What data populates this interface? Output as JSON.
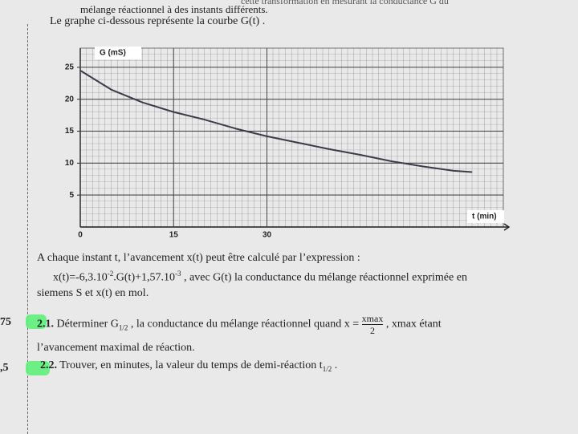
{
  "header": {
    "cut_line": "cette transformation en mesurant la conductance G du",
    "line1": "mélange réactionnel à des instants différents.",
    "line2": "Le graphe ci-dessous représente la courbe G(t) ."
  },
  "chart_data": {
    "type": "line",
    "x_label": "t (min)",
    "y_label": "G (mS)",
    "x": [
      0,
      5,
      10,
      15,
      20,
      25,
      30,
      35,
      40,
      45,
      50,
      55,
      60,
      63
    ],
    "series": [
      {
        "color": "#3a3d48",
        "values": [
          24.5,
          21.5,
          19.5,
          18,
          16.8,
          15.4,
          14.2,
          13.2,
          12.2,
          11.3,
          10.3,
          9.5,
          8.8,
          8.6
        ]
      }
    ],
    "xlim": [
      0,
      68
    ],
    "ylim": [
      0,
      28
    ],
    "xticks": [
      0,
      15,
      30
    ],
    "yticks": [
      5,
      10,
      15,
      20,
      25
    ]
  },
  "body": {
    "p1": "A chaque instant t, l’avancement x(t) peut être calculé par l’expression :",
    "formula": {
      "a": "x(t)=-6,3.10",
      "e1": "-2",
      "b": ".G(t)+1,57.10",
      "e2": "-3",
      "c": " , avec G(t) la conductance du mélange réactionnel exprimée en"
    },
    "p2": "siemens S et x(t) en mol.",
    "score1": "75",
    "score2": ",5",
    "q1": {
      "number": "2.1.",
      "a": "Déterminer G",
      "sub": "1/2",
      "b": " , la conductance du mélange réactionnel quand x =",
      "num": "xmax",
      "den": "2",
      "c": ", xmax étant",
      "d": "l’avancement maximal de réaction."
    },
    "q2": {
      "number": "2.2.",
      "a": "Trouver, en minutes, la valeur du temps de demi-réaction t",
      "sub": "1/2",
      "b": " ."
    }
  }
}
